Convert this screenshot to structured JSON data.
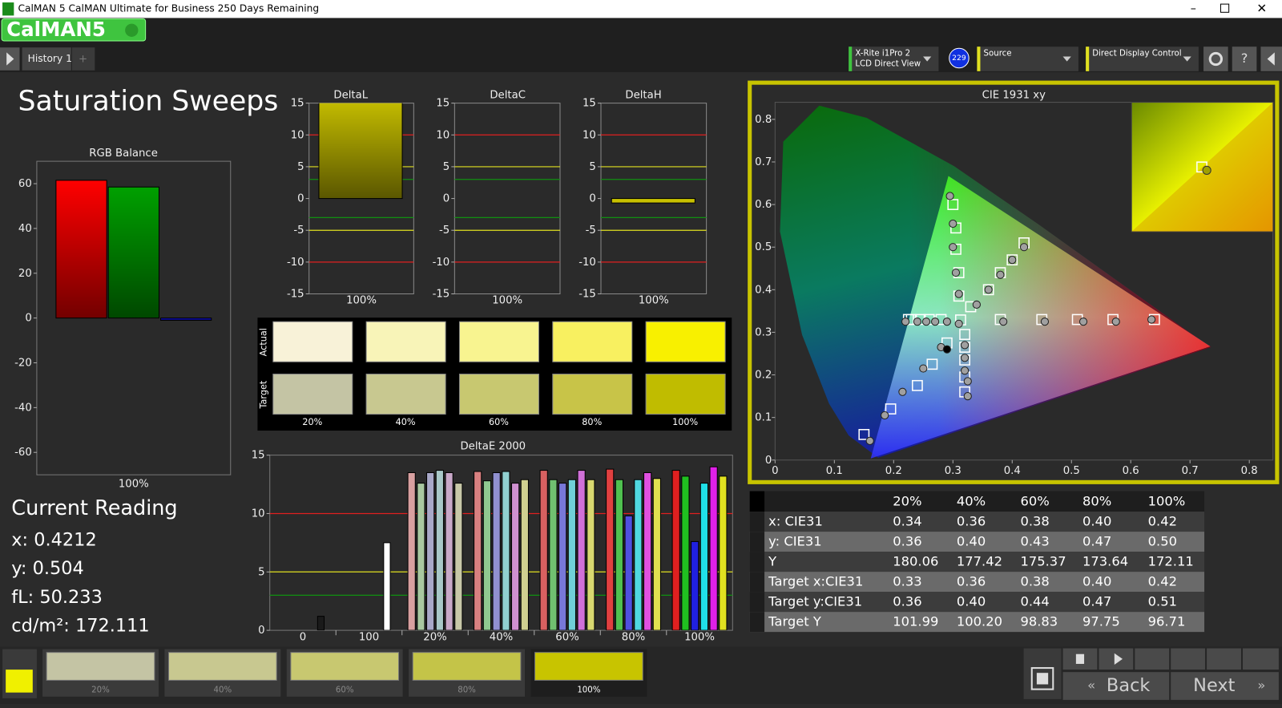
{
  "window": {
    "title": "CalMAN 5 CalMAN Ultimate for Business 250 Days Remaining",
    "logo": "CalMAN5",
    "tab": "History 1"
  },
  "toolbar": {
    "meter": "X-Rite i1Pro 2",
    "meter_mode": "LCD Direct View",
    "badge": "229",
    "source": "Source",
    "display": "Direct Display Control"
  },
  "page_title": "Saturation Sweeps",
  "current_reading": {
    "title": "Current Reading",
    "lines": [
      "x: 0.4212",
      "y: 0.504",
      "fL: 50.233",
      "cd/m²: 172.111"
    ]
  },
  "chart_data": [
    {
      "type": "bar",
      "title": "RGB Balance",
      "categories": [
        "100%"
      ],
      "ylim": [
        -70,
        70
      ],
      "yticks": [
        -60,
        -40,
        -20,
        0,
        20,
        40,
        60
      ],
      "series": [
        {
          "color": "#ff0000",
          "values": [
            61.5
          ]
        },
        {
          "color": "#00a000",
          "values": [
            58.5
          ]
        },
        {
          "color": "#1010d0",
          "values": [
            -1
          ]
        }
      ]
    },
    {
      "type": "bar",
      "title": "DeltaL",
      "categories": [
        "100%"
      ],
      "values": [
        16
      ],
      "color": "#c8c000",
      "ylim": [
        -15,
        15
      ],
      "yticks": [
        -15,
        -10,
        -5,
        0,
        5,
        10,
        15
      ],
      "thresholds": [
        {
          "value": 10,
          "color": "#e02020"
        },
        {
          "value": -10,
          "color": "#e02020"
        },
        {
          "value": 5,
          "color": "#e0e020"
        },
        {
          "value": -5,
          "color": "#e0e020"
        },
        {
          "value": 3,
          "color": "#109010"
        },
        {
          "value": -3,
          "color": "#109010"
        }
      ]
    },
    {
      "type": "bar",
      "title": "DeltaC",
      "categories": [
        "100%"
      ],
      "values": [
        0
      ],
      "color": "#111111",
      "ylim": [
        -15,
        15
      ],
      "yticks": [
        -15,
        -10,
        -5,
        0,
        5,
        10,
        15
      ],
      "thresholds": [
        {
          "value": 10,
          "color": "#e02020"
        },
        {
          "value": -10,
          "color": "#e02020"
        },
        {
          "value": 5,
          "color": "#e0e020"
        },
        {
          "value": -5,
          "color": "#e0e020"
        },
        {
          "value": 3,
          "color": "#109010"
        },
        {
          "value": -3,
          "color": "#109010"
        }
      ]
    },
    {
      "type": "bar",
      "title": "DeltaH",
      "categories": [
        "100%"
      ],
      "values": [
        -0.7
      ],
      "color": "#c8c000",
      "ylim": [
        -15,
        15
      ],
      "yticks": [
        -15,
        -10,
        -5,
        0,
        5,
        10,
        15
      ],
      "thresholds": [
        {
          "value": 10,
          "color": "#e02020"
        },
        {
          "value": -10,
          "color": "#e02020"
        },
        {
          "value": 5,
          "color": "#e0e020"
        },
        {
          "value": -5,
          "color": "#e0e020"
        },
        {
          "value": 3,
          "color": "#109010"
        },
        {
          "value": -3,
          "color": "#109010"
        }
      ]
    },
    {
      "type": "bar",
      "title": "DeltaE 2000",
      "categories": [
        "0",
        "100",
        "20%",
        "40%",
        "60%",
        "80%",
        "100%"
      ],
      "ylim": [
        0,
        15
      ],
      "yticks": [
        0,
        5,
        10,
        15
      ],
      "thresholds": [
        {
          "value": 10,
          "color": "#e02020"
        },
        {
          "value": 5,
          "color": "#e0e020"
        },
        {
          "value": 3,
          "color": "#109010"
        }
      ],
      "series": [
        {
          "colors": [
            null,
            null,
            "#d8a0a0",
            "#d88080",
            "#d86060",
            "#e04040",
            "#e02020"
          ],
          "values": [
            null,
            null,
            13.5,
            13.6,
            13.7,
            13.8,
            13.7
          ]
        },
        {
          "colors": [
            null,
            null,
            "#a8c8a0",
            "#90c890",
            "#70c070",
            "#50c050",
            "#20c020"
          ],
          "values": [
            null,
            null,
            12.6,
            12.8,
            12.9,
            12.9,
            13.2
          ]
        },
        {
          "colors": [
            null,
            null,
            "#a8a8c8",
            "#9090d0",
            "#7878d8",
            "#5050e0",
            "#2020e0"
          ],
          "values": [
            null,
            null,
            13.5,
            13.5,
            12.6,
            9.8,
            7.6
          ]
        },
        {
          "colors": [
            null,
            null,
            "#a8c8c8",
            "#90d0d0",
            "#70d0d8",
            "#50d8e0",
            "#20e0e8"
          ],
          "values": [
            null,
            null,
            13.7,
            13.6,
            12.9,
            12.9,
            12.6
          ]
        },
        {
          "colors": [
            null,
            null,
            "#c8a8c8",
            "#d090d0",
            "#d070d8",
            "#e050e0",
            "#e020e8"
          ],
          "values": [
            null,
            null,
            13.5,
            12.6,
            13.7,
            13.5,
            14.0
          ]
        },
        {
          "colors": [
            null,
            null,
            "#c8c8a8",
            "#d0d090",
            "#d8d870",
            "#e0e050",
            "#e0e020"
          ],
          "values": [
            null,
            null,
            12.6,
            12.9,
            12.9,
            13.0,
            13.2
          ]
        },
        {
          "color": "#1a1a1a",
          "values": [
            1.2,
            null,
            null,
            null,
            null,
            null,
            null
          ]
        },
        {
          "color": "#ffffff",
          "values": [
            null,
            7.5,
            null,
            null,
            null,
            null,
            null
          ]
        }
      ]
    },
    {
      "type": "scatter",
      "title": "CIE 1931 xy",
      "xlim": [
        0,
        0.84
      ],
      "ylim": [
        0,
        0.84
      ],
      "xticks": [
        0,
        0.1,
        0.2,
        0.3,
        0.4,
        0.5,
        0.6,
        0.7,
        0.8
      ],
      "yticks": [
        0,
        0.1,
        0.2,
        0.3,
        0.4,
        0.5,
        0.6,
        0.7,
        0.8
      ],
      "series": [
        {
          "marker": "square",
          "color": "#ffffff",
          "x": [
            0.313,
            0.38,
            0.45,
            0.51,
            0.57,
            0.64,
            0.31,
            0.31,
            0.305,
            0.305,
            0.3,
            0.29,
            0.265,
            0.24,
            0.195,
            0.15,
            0.28,
            0.26,
            0.245,
            0.23,
            0.225,
            0.32,
            0.32,
            0.32,
            0.32,
            0.32,
            0.33,
            0.36,
            0.38,
            0.4,
            0.42
          ],
          "y": [
            0.329,
            0.33,
            0.33,
            0.33,
            0.33,
            0.33,
            0.385,
            0.44,
            0.495,
            0.545,
            0.6,
            0.275,
            0.225,
            0.175,
            0.12,
            0.06,
            0.33,
            0.33,
            0.33,
            0.33,
            0.33,
            0.295,
            0.265,
            0.235,
            0.195,
            0.16,
            0.36,
            0.4,
            0.44,
            0.47,
            0.51
          ]
        },
        {
          "marker": "circle",
          "color": "#a0a0a0",
          "x": [
            0.31,
            0.385,
            0.455,
            0.52,
            0.575,
            0.635,
            0.31,
            0.305,
            0.3,
            0.3,
            0.295,
            0.28,
            0.25,
            0.215,
            0.185,
            0.16,
            0.29,
            0.27,
            0.255,
            0.24,
            0.22,
            0.32,
            0.32,
            0.32,
            0.325,
            0.325,
            0.34,
            0.36,
            0.38,
            0.4,
            0.42
          ],
          "y": [
            0.32,
            0.325,
            0.325,
            0.325,
            0.325,
            0.33,
            0.39,
            0.44,
            0.5,
            0.555,
            0.62,
            0.265,
            0.215,
            0.16,
            0.105,
            0.045,
            0.325,
            0.325,
            0.325,
            0.325,
            0.325,
            0.27,
            0.24,
            0.21,
            0.185,
            0.15,
            0.365,
            0.4,
            0.435,
            0.47,
            0.5
          ]
        },
        {
          "marker": "circle",
          "color": "#000000",
          "x": [
            0.29
          ],
          "y": [
            0.26
          ]
        }
      ]
    }
  ],
  "swatches": {
    "rows": [
      "Actual",
      "Target"
    ],
    "columns": [
      "20%",
      "40%",
      "60%",
      "80%",
      "100%"
    ],
    "colors": [
      [
        "#f8f2d8",
        "#f8f4b8",
        "#f8f490",
        "#f8f060",
        "#f8f000"
      ],
      [
        "#c4c4a4",
        "#c8c890",
        "#c8c870",
        "#c8c448",
        "#c0bc00"
      ]
    ]
  },
  "table": {
    "header": [
      "20%",
      "40%",
      "60%",
      "80%",
      "100%"
    ],
    "rows": [
      [
        "x: CIE31",
        "0.34",
        "0.36",
        "0.38",
        "0.40",
        "0.42"
      ],
      [
        "y: CIE31",
        "0.36",
        "0.40",
        "0.43",
        "0.47",
        "0.50"
      ],
      [
        "Y",
        "180.06",
        "177.42",
        "175.37",
        "173.64",
        "172.11"
      ],
      [
        "Target x:CIE31",
        "0.33",
        "0.36",
        "0.38",
        "0.40",
        "0.42"
      ],
      [
        "Target y:CIE31",
        "0.36",
        "0.40",
        "0.44",
        "0.47",
        "0.51"
      ],
      [
        "Target Y",
        "101.99",
        "100.20",
        "98.83",
        "97.75",
        "96.71"
      ]
    ]
  },
  "bottom": {
    "swatches": [
      "20%",
      "40%",
      "60%",
      "80%",
      "100%"
    ],
    "colors": [
      "#c4c4a4",
      "#c8c890",
      "#c8c870",
      "#c4c448",
      "#c8c400"
    ],
    "back": "Back",
    "next": "Next"
  }
}
